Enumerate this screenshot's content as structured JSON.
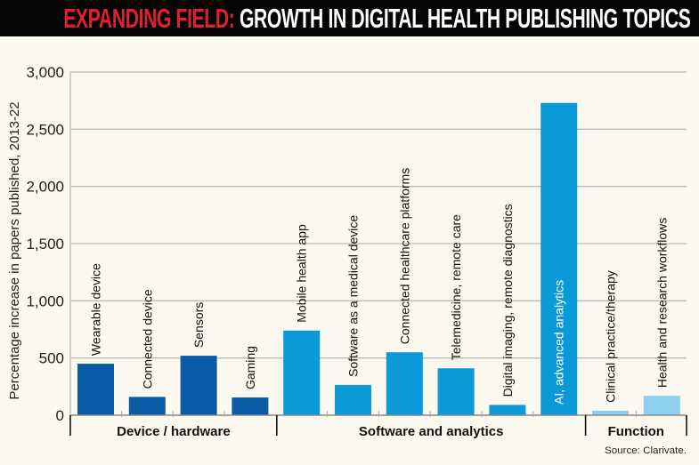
{
  "title": {
    "highlight": "EXPANDING FIELD:",
    "main": " GROWTH IN DIGITAL HEALTH PUBLISHING TOPICS"
  },
  "source": "Source: Clarivate.",
  "colors": {
    "device_hardware": "#0a5ba6",
    "software_analytics": "#0b9ad7",
    "function": "#8fd0f1",
    "title_accent": "#e0202c",
    "background": "#fcf9f1"
  },
  "chart_data": {
    "type": "bar",
    "title": "EXPANDING FIELD: GROWTH IN DIGITAL HEALTH PUBLISHING TOPICS",
    "ylabel": "Percentage increase in papers published, 2013-22",
    "xlabel": "",
    "ylim": [
      0,
      3000
    ],
    "yticks": [
      "0",
      "500",
      "1,000",
      "1,500",
      "2,000",
      "2,500",
      "3,000"
    ],
    "ytick_values": [
      0,
      500,
      1000,
      1500,
      2000,
      2500,
      3000
    ],
    "grid": true,
    "groups": [
      {
        "name": "Device / hardware",
        "color_key": "device_hardware",
        "categories": [
          "Wearable device",
          "Connected device",
          "Sensors",
          "Gaming"
        ],
        "values": [
          450,
          160,
          520,
          155
        ]
      },
      {
        "name": "Software and analytics",
        "color_key": "software_analytics",
        "categories": [
          "Mobile health app",
          "Software as a medical device",
          "Connected healthcare platforms",
          "Telemedicine, remote care",
          "Digital imaging, remote diagnostics",
          "AI, advanced analytics"
        ],
        "values": [
          740,
          265,
          550,
          410,
          90,
          2730
        ]
      },
      {
        "name": "Function",
        "color_key": "function",
        "categories": [
          "Clinical practice/therapy",
          "Health and research workflows"
        ],
        "values": [
          40,
          170
        ]
      }
    ]
  }
}
